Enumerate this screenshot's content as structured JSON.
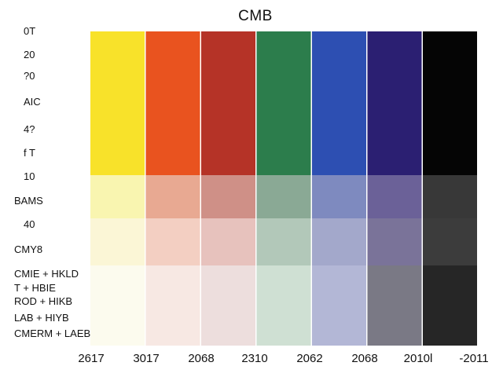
{
  "chart_data": {
    "type": "heatmap",
    "title": "CMB",
    "row_labels": [
      "0T",
      "20",
      "?0",
      "AIC",
      "4?",
      "f T",
      "10",
      "BAMS",
      "40",
      "CMY8",
      "CMIE + HKLD",
      "T + HBIE",
      "ROD + HIKB",
      "LAB + HIYB",
      "CMERM + LAEB"
    ],
    "column_labels": [
      "2617",
      "3017",
      "2068",
      "2310",
      "2062",
      "2068",
      "2010l",
      "-2011"
    ],
    "bands": [
      "full",
      "tint-1",
      "tint-2",
      "tint-3"
    ],
    "colors": [
      [
        "#f8e22a",
        "#f9f5b0",
        "#fbf6d6",
        "#fcfbee"
      ],
      [
        "#e9531f",
        "#e8a992",
        "#f3cfc2",
        "#f7e8e3"
      ],
      [
        "#b53327",
        "#cf9087",
        "#e7c2bd",
        "#eddedd"
      ],
      [
        "#2c7d4c",
        "#8aa995",
        "#b2c8b9",
        "#cfe0d3"
      ],
      [
        "#2d4fb2",
        "#7e8abf",
        "#a3a8cb",
        "#b3b7d6"
      ],
      [
        "#2b1f72",
        "#6b6198",
        "#7a7399",
        "#7a7985"
      ],
      [
        "#050505",
        "#383838",
        "#3c3c3c",
        "#262626"
      ]
    ]
  }
}
